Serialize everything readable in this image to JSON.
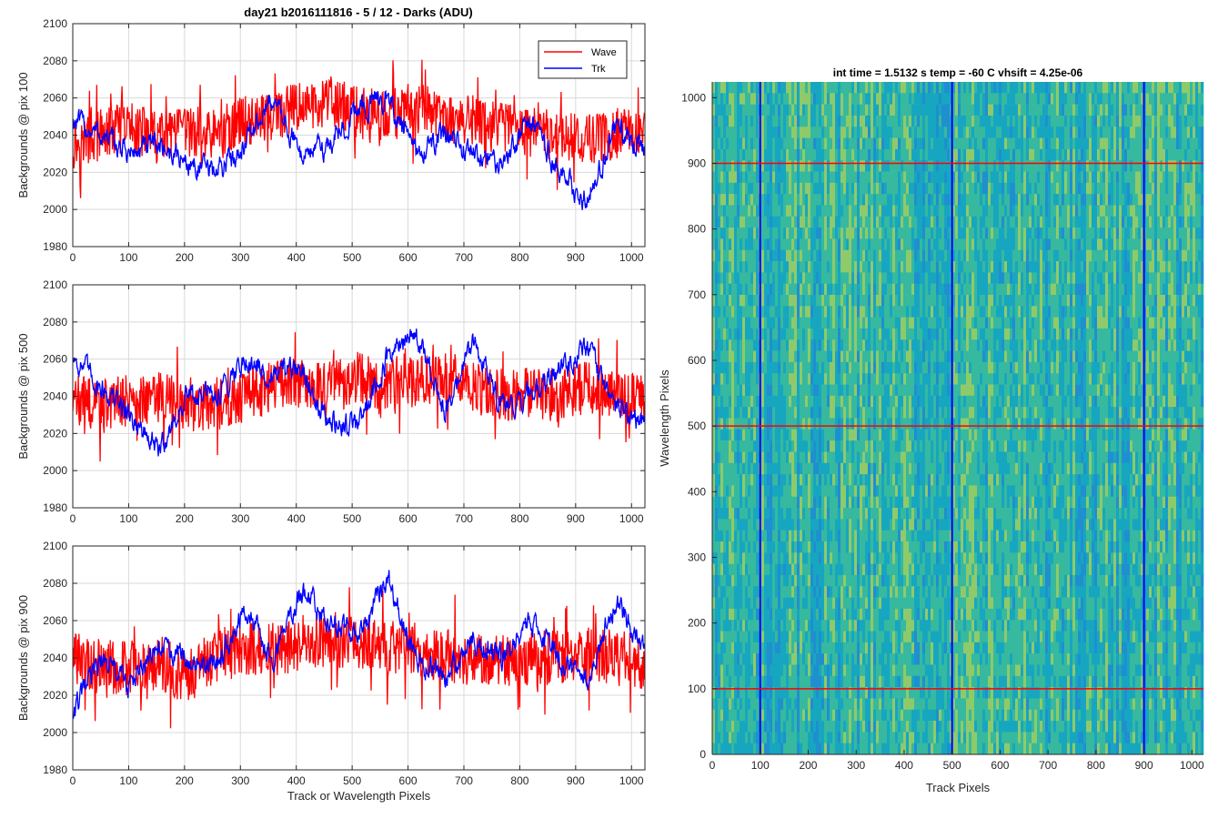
{
  "figure": {
    "title": "day21 b2016111816 - 5 / 12 - Darks (ADU)",
    "colors": {
      "wave": "#ff0000",
      "trk": "#0000ff",
      "axis": "#262626",
      "grid": "#d9d9d9"
    }
  },
  "chart_data": [
    {
      "type": "line",
      "ylabel": "Backgrounds @ pix 100",
      "xlabel": "",
      "xlim": [
        0,
        1024
      ],
      "ylim": [
        1980,
        2100
      ],
      "xticks": [
        "0",
        "100",
        "200",
        "300",
        "400",
        "500",
        "600",
        "700",
        "800",
        "900",
        "1000"
      ],
      "yticks": [
        "1980",
        "2000",
        "2020",
        "2040",
        "2060",
        "2080",
        "2100"
      ],
      "grid": true,
      "legend": {
        "placement": "top-right",
        "entries": [
          "Wave",
          "Trk"
        ]
      },
      "series": [
        {
          "name": "Wave",
          "color": "#ff0000",
          "profile": [
            2035,
            2040,
            2045,
            2038,
            2042,
            2040,
            2048,
            2050,
            2055,
            2058,
            2052,
            2050,
            2055,
            2050,
            2048,
            2045,
            2042,
            2040,
            2038,
            2040,
            2045
          ],
          "noise_amplitude": 14
        },
        {
          "name": "Trk",
          "color": "#0000ff",
          "profile": [
            2048,
            2040,
            2030,
            2035,
            2025,
            2020,
            2035,
            2060,
            2030,
            2035,
            2055,
            2060,
            2030,
            2040,
            2030,
            2025,
            2050,
            2020,
            2005,
            2045,
            2030
          ],
          "noise_amplitude": 5
        }
      ]
    },
    {
      "type": "line",
      "ylabel": "Backgrounds @ pix 500",
      "xlabel": "",
      "xlim": [
        0,
        1024
      ],
      "ylim": [
        1980,
        2100
      ],
      "xticks": [
        "0",
        "100",
        "200",
        "300",
        "400",
        "500",
        "600",
        "700",
        "800",
        "900",
        "1000"
      ],
      "yticks": [
        "1980",
        "2000",
        "2020",
        "2040",
        "2060",
        "2080",
        "2100"
      ],
      "grid": true,
      "series": [
        {
          "name": "Wave",
          "color": "#ff0000",
          "profile": [
            2038,
            2035,
            2038,
            2040,
            2035,
            2035,
            2040,
            2045,
            2048,
            2045,
            2050,
            2045,
            2048,
            2050,
            2045,
            2040,
            2042,
            2040,
            2045,
            2040,
            2038
          ],
          "noise_amplitude": 14
        },
        {
          "name": "Trk",
          "color": "#0000ff",
          "profile": [
            2062,
            2045,
            2030,
            2010,
            2040,
            2040,
            2060,
            2050,
            2055,
            2025,
            2025,
            2060,
            2075,
            2030,
            2070,
            2035,
            2040,
            2055,
            2065,
            2035,
            2025
          ],
          "noise_amplitude": 5
        }
      ]
    },
    {
      "type": "line",
      "ylabel": "Backgrounds @ pix 900",
      "xlabel": "Track or Wavelength Pixels",
      "xlim": [
        0,
        1024
      ],
      "ylim": [
        1980,
        2100
      ],
      "xticks": [
        "0",
        "100",
        "200",
        "300",
        "400",
        "500",
        "600",
        "700",
        "800",
        "900",
        "1000"
      ],
      "yticks": [
        "1980",
        "2000",
        "2020",
        "2040",
        "2060",
        "2080",
        "2100"
      ],
      "grid": true,
      "series": [
        {
          "name": "Wave",
          "color": "#ff0000",
          "profile": [
            2040,
            2035,
            2035,
            2038,
            2030,
            2040,
            2045,
            2045,
            2048,
            2050,
            2048,
            2045,
            2045,
            2042,
            2040,
            2038,
            2040,
            2040,
            2042,
            2040,
            2038
          ],
          "noise_amplitude": 15
        },
        {
          "name": "Trk",
          "color": "#0000ff",
          "profile": [
            2010,
            2040,
            2025,
            2045,
            2040,
            2035,
            2065,
            2040,
            2075,
            2060,
            2050,
            2085,
            2040,
            2030,
            2050,
            2040,
            2060,
            2040,
            2030,
            2070,
            2045
          ],
          "noise_amplitude": 5
        }
      ]
    },
    {
      "type": "heatmap",
      "title": "int time = 1.5132 s    temp = -60 C    vhsift = 4.25e-06",
      "xlabel": "Track Pixels",
      "ylabel": "Wavelength Pixels",
      "xlim": [
        0,
        1024
      ],
      "ylim": [
        0,
        1024
      ],
      "xticks": [
        "0",
        "100",
        "200",
        "300",
        "400",
        "500",
        "600",
        "700",
        "800",
        "900",
        "1000"
      ],
      "yticks": [
        "0",
        "100",
        "200",
        "300",
        "400",
        "500",
        "600",
        "700",
        "800",
        "900",
        "1000"
      ],
      "colormap": [
        "#1f8fcf",
        "#17a6c0",
        "#36b99e",
        "#8fca6a"
      ],
      "vertical_lines": {
        "color": "#0000ff",
        "x": [
          100,
          500,
          900
        ]
      },
      "horizontal_lines": {
        "color": "#ff0000",
        "y": [
          100,
          500,
          900
        ]
      }
    }
  ]
}
